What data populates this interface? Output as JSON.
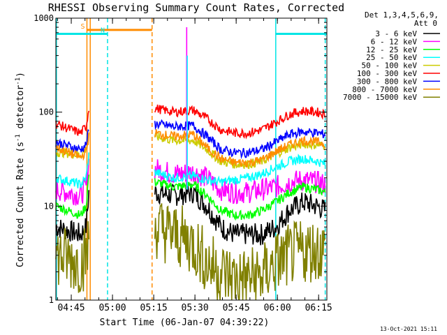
{
  "chart_data": {
    "type": "line",
    "title": "RHESSI Observing Summary Count Rates, Corrected",
    "xlabel": "Start Time (06-Jan-07 04:39:22)",
    "ylabel_main": "Corrected Count Rate (s",
    "ylabel_sup1": "-1",
    "ylabel_mid": " detector",
    "ylabel_sup2": "-1",
    "ylabel_end": ")",
    "y_scale": "log",
    "ylim": [
      1,
      1000
    ],
    "xlim_minutes_after_0439_22": [
      0,
      98.6
    ],
    "x_ticks": [
      {
        "label": "04:45",
        "t": 5.6
      },
      {
        "label": "05:00",
        "t": 20.6
      },
      {
        "label": "05:15",
        "t": 35.6
      },
      {
        "label": "05:30",
        "t": 50.6
      },
      {
        "label": "05:45",
        "t": 65.6
      },
      {
        "label": "06:00",
        "t": 80.6
      },
      {
        "label": "06:15",
        "t": 95.6
      }
    ],
    "y_ticks": [
      {
        "label": "1",
        "v": 1
      },
      {
        "label": "10",
        "v": 10
      },
      {
        "label": "100",
        "v": 100
      },
      {
        "label": "1000",
        "v": 1000
      }
    ],
    "legend_header": [
      "Det 1,3,4,5,6,9,",
      "Att 0"
    ],
    "legend_placement": "top-right outside plot",
    "series": [
      {
        "name": "3 - 6 keV",
        "color": "#000000",
        "seg1": [
          [
            0,
            6
          ],
          [
            9,
            5
          ],
          [
            11,
            6
          ],
          [
            12,
            14
          ]
        ],
        "seg2": [
          [
            36,
            14
          ],
          [
            43,
            13
          ],
          [
            50,
            14
          ],
          [
            55,
            10
          ],
          [
            60,
            6
          ],
          [
            65,
            5
          ],
          [
            70,
            5
          ],
          [
            75,
            5
          ],
          [
            80,
            6
          ],
          [
            85,
            9
          ],
          [
            90,
            11
          ],
          [
            95,
            10
          ],
          [
            98,
            9
          ]
        ]
      },
      {
        "name": "6 - 12 keV",
        "color": "#ff00ff",
        "seg1": [
          [
            0,
            15
          ],
          [
            9,
            13
          ],
          [
            11,
            16
          ],
          [
            12,
            30
          ]
        ],
        "seg2": [
          [
            36,
            25
          ],
          [
            43,
            22
          ],
          [
            50,
            23
          ],
          [
            55,
            20
          ],
          [
            60,
            15
          ],
          [
            65,
            14
          ],
          [
            70,
            14
          ],
          [
            75,
            15
          ],
          [
            80,
            16
          ],
          [
            85,
            18
          ],
          [
            90,
            19
          ],
          [
            95,
            18
          ],
          [
            98,
            17
          ]
        ]
      },
      {
        "name": "12 - 25 keV",
        "color": "#00ff00",
        "seg1": [
          [
            0,
            10
          ],
          [
            9,
            8
          ],
          [
            11,
            10
          ],
          [
            12,
            22
          ]
        ],
        "seg2": [
          [
            36,
            18
          ],
          [
            43,
            16
          ],
          [
            50,
            17
          ],
          [
            55,
            13
          ],
          [
            60,
            9
          ],
          [
            65,
            8
          ],
          [
            70,
            8
          ],
          [
            75,
            9
          ],
          [
            80,
            11
          ],
          [
            85,
            14
          ],
          [
            90,
            16
          ],
          [
            95,
            15
          ],
          [
            98,
            14
          ]
        ]
      },
      {
        "name": "25 - 50 keV",
        "color": "#00ffff",
        "seg1": [
          [
            0,
            20
          ],
          [
            9,
            17
          ],
          [
            11,
            20
          ],
          [
            12,
            35
          ]
        ],
        "seg2": [
          [
            36,
            23
          ],
          [
            43,
            20
          ],
          [
            50,
            21
          ],
          [
            55,
            19
          ],
          [
            60,
            18
          ],
          [
            65,
            19
          ],
          [
            70,
            20
          ],
          [
            75,
            22
          ],
          [
            80,
            26
          ],
          [
            85,
            30
          ],
          [
            90,
            32
          ],
          [
            95,
            30
          ],
          [
            98,
            28
          ]
        ]
      },
      {
        "name": "50 - 100 keV",
        "color": "#cccc00",
        "seg1": [
          [
            0,
            38
          ],
          [
            9,
            35
          ],
          [
            11,
            40
          ],
          [
            12,
            60
          ]
        ],
        "seg2": [
          [
            36,
            55
          ],
          [
            43,
            50
          ],
          [
            50,
            50
          ],
          [
            55,
            40
          ],
          [
            60,
            30
          ],
          [
            65,
            28
          ],
          [
            70,
            28
          ],
          [
            75,
            30
          ],
          [
            80,
            36
          ],
          [
            85,
            42
          ],
          [
            90,
            46
          ],
          [
            95,
            45
          ],
          [
            98,
            44
          ]
        ]
      },
      {
        "name": "100 - 300 keV",
        "color": "#ff0000",
        "seg1": [
          [
            0,
            75
          ],
          [
            9,
            60
          ],
          [
            11,
            70
          ],
          [
            12,
            110
          ]
        ],
        "seg2": [
          [
            36,
            110
          ],
          [
            43,
            100
          ],
          [
            50,
            105
          ],
          [
            55,
            85
          ],
          [
            60,
            65
          ],
          [
            65,
            60
          ],
          [
            70,
            60
          ],
          [
            75,
            65
          ],
          [
            80,
            78
          ],
          [
            85,
            95
          ],
          [
            90,
            103
          ],
          [
            95,
            100
          ],
          [
            98,
            95
          ]
        ]
      },
      {
        "name": "300 - 800 keV",
        "color": "#0000ff",
        "seg1": [
          [
            0,
            48
          ],
          [
            9,
            40
          ],
          [
            11,
            45
          ],
          [
            12,
            65
          ]
        ],
        "seg2": [
          [
            36,
            75
          ],
          [
            43,
            70
          ],
          [
            50,
            72
          ],
          [
            55,
            55
          ],
          [
            60,
            40
          ],
          [
            65,
            37
          ],
          [
            70,
            37
          ],
          [
            75,
            40
          ],
          [
            80,
            48
          ],
          [
            85,
            58
          ],
          [
            90,
            62
          ],
          [
            95,
            60
          ],
          [
            98,
            58
          ]
        ]
      },
      {
        "name": "800 - 7000 keV",
        "color": "#ff8c00",
        "seg1": [
          [
            0,
            42
          ],
          [
            9,
            33
          ],
          [
            11,
            38
          ],
          [
            12,
            55
          ]
        ],
        "seg2": [
          [
            36,
            60
          ],
          [
            43,
            55
          ],
          [
            50,
            58
          ],
          [
            55,
            42
          ],
          [
            60,
            32
          ],
          [
            65,
            29
          ],
          [
            70,
            29
          ],
          [
            75,
            31
          ],
          [
            80,
            38
          ],
          [
            85,
            45
          ],
          [
            90,
            50
          ],
          [
            95,
            48
          ],
          [
            98,
            46
          ]
        ]
      },
      {
        "name": "7000 - 15000 keV",
        "color": "#808000",
        "seg1": [
          [
            0,
            3
          ],
          [
            9,
            2.5
          ],
          [
            11,
            3
          ],
          [
            12,
            4
          ]
        ],
        "seg2": [
          [
            36,
            6
          ],
          [
            43,
            5
          ],
          [
            50,
            4
          ],
          [
            55,
            2.5
          ],
          [
            60,
            2
          ],
          [
            65,
            1.7
          ],
          [
            70,
            1.7
          ],
          [
            75,
            1.8
          ],
          [
            80,
            2.5
          ],
          [
            85,
            3
          ],
          [
            90,
            3.3
          ],
          [
            95,
            3.5
          ],
          [
            98,
            3.3
          ]
        ]
      }
    ],
    "flare_peaks": [
      {
        "t": 47.6,
        "v": 800
      },
      {
        "t": 47.8,
        "v": 400
      }
    ],
    "bars": [
      {
        "label": "S",
        "color": "#ff8c00",
        "t0": 11.3,
        "t1": 35.0,
        "v": 750
      },
      {
        "label": "N",
        "color": "#00e5e5",
        "t0": 0,
        "t1": 18.8,
        "v": 680
      },
      {
        "label": "",
        "color": "#00e5e5",
        "t0": 80.0,
        "t1": 98.6,
        "v": 680
      }
    ],
    "vlines": [
      {
        "t": 0.2,
        "color": "#00e5e5",
        "style": "solid"
      },
      {
        "t": 11.3,
        "color": "#ff8c00",
        "style": "solid"
      },
      {
        "t": 12.5,
        "color": "#ff8c00",
        "style": "solid"
      },
      {
        "t": 18.8,
        "color": "#00e5e5",
        "style": "dashed"
      },
      {
        "t": 35.0,
        "color": "#ff8c00",
        "style": "dashed"
      },
      {
        "t": 80.0,
        "color": "#00e5e5",
        "style": "solid"
      },
      {
        "t": 98.0,
        "color": "#00e5e5",
        "style": "dashed"
      }
    ]
  },
  "footer_date": "13-Oct-2021 15:11"
}
